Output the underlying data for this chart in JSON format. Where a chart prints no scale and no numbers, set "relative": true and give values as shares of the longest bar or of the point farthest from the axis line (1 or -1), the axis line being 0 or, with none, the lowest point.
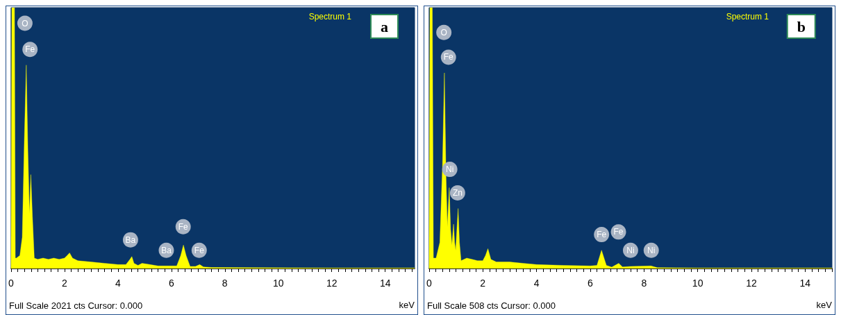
{
  "chart_data": [
    {
      "type": "area",
      "title": "a",
      "subtitle": "Spectrum 1",
      "xlabel": "keV",
      "relative": true,
      "xlim": [
        0,
        15.1
      ],
      "xticks": [
        0,
        2,
        4,
        6,
        8,
        10,
        12,
        14
      ],
      "grid": false,
      "series": [
        {
          "color": "#ffff00",
          "x": [
            0,
            0.03,
            0.08,
            0.13,
            0.16,
            0.2,
            0.33,
            0.42,
            0.5,
            0.57,
            0.63,
            0.69,
            0.74,
            0.8,
            0.87,
            1.0,
            1.2,
            1.4,
            1.6,
            1.8,
            2.0,
            2.1,
            2.19,
            2.3,
            2.5,
            3.0,
            3.5,
            4.0,
            4.3,
            4.45,
            4.52,
            4.6,
            4.75,
            4.9,
            5.2,
            5.5,
            5.8,
            6.2,
            6.35,
            6.45,
            6.55,
            6.7,
            6.9,
            7.06,
            7.2,
            7.5,
            9,
            12,
            15.1
          ],
          "values": [
            0,
            1,
            1,
            1,
            0.04,
            0.04,
            0.05,
            0.12,
            0.5,
            0.78,
            0.45,
            0.21,
            0.36,
            0.2,
            0.04,
            0.035,
            0.04,
            0.035,
            0.04,
            0.035,
            0.04,
            0.05,
            0.06,
            0.04,
            0.03,
            0.025,
            0.02,
            0.015,
            0.015,
            0.035,
            0.046,
            0.02,
            0.012,
            0.02,
            0.015,
            0.01,
            0.01,
            0.01,
            0.05,
            0.09,
            0.05,
            0.008,
            0.008,
            0.015,
            0.006,
            0.004,
            0.003,
            0.002,
            0.002
          ]
        }
      ],
      "annotations": [
        "Full Scale 2021 cts Cursor: 0.000",
        {
          "text": "O",
          "x": 0.52,
          "y": 0.94
        },
        {
          "text": "Fe",
          "x": 0.71,
          "y": 0.84
        },
        {
          "text": "Ba",
          "x": 4.47,
          "y": 0.11
        },
        {
          "text": "Ba",
          "x": 5.81,
          "y": 0.07
        },
        {
          "text": "Fe",
          "x": 6.44,
          "y": 0.16
        },
        {
          "text": "Fe",
          "x": 7.04,
          "y": 0.07
        }
      ]
    },
    {
      "type": "area",
      "title": "b",
      "subtitle": "Spectrum 1",
      "xlabel": "keV",
      "relative": true,
      "xlim": [
        0,
        15
      ],
      "xticks": [
        0,
        2,
        4,
        6,
        8,
        10,
        12,
        14
      ],
      "grid": false,
      "series": [
        {
          "color": "#ffff00",
          "x": [
            0,
            0.03,
            0.07,
            0.12,
            0.16,
            0.26,
            0.4,
            0.5,
            0.57,
            0.63,
            0.68,
            0.75,
            0.8,
            0.85,
            0.91,
            0.95,
            0.99,
            1.08,
            1.13,
            1.19,
            1.4,
            1.6,
            1.8,
            2.0,
            2.1,
            2.19,
            2.3,
            2.5,
            3.0,
            3.5,
            4.0,
            5.0,
            6.0,
            6.25,
            6.42,
            6.6,
            6.8,
            7.06,
            7.2,
            7.5,
            8.26,
            8.5,
            10,
            15
          ],
          "values": [
            0,
            1,
            1,
            1,
            0.04,
            0.04,
            0.1,
            0.4,
            0.75,
            0.35,
            0.16,
            0.31,
            0.15,
            0.09,
            0.17,
            0.1,
            0.07,
            0.23,
            0.1,
            0.03,
            0.04,
            0.035,
            0.03,
            0.03,
            0.05,
            0.076,
            0.035,
            0.025,
            0.025,
            0.02,
            0.015,
            0.012,
            0.01,
            0.012,
            0.07,
            0.012,
            0.005,
            0.02,
            0.006,
            0.008,
            0.01,
            0.003,
            0.002,
            0.002
          ]
        }
      ],
      "annotations": [
        "Full Scale 508 cts Cursor: 0.000",
        {
          "text": "O",
          "x": 0.55,
          "y": 0.905
        },
        {
          "text": "Fe",
          "x": 0.72,
          "y": 0.81
        },
        {
          "text": "Ni",
          "x": 0.77,
          "y": 0.38
        },
        {
          "text": "Zn",
          "x": 1.06,
          "y": 0.29
        },
        {
          "text": "Fe",
          "x": 6.42,
          "y": 0.13
        },
        {
          "text": "Fe",
          "x": 7.05,
          "y": 0.14
        },
        {
          "text": "Ni",
          "x": 7.5,
          "y": 0.07
        },
        {
          "text": "Ni",
          "x": 8.27,
          "y": 0.07
        }
      ]
    }
  ]
}
